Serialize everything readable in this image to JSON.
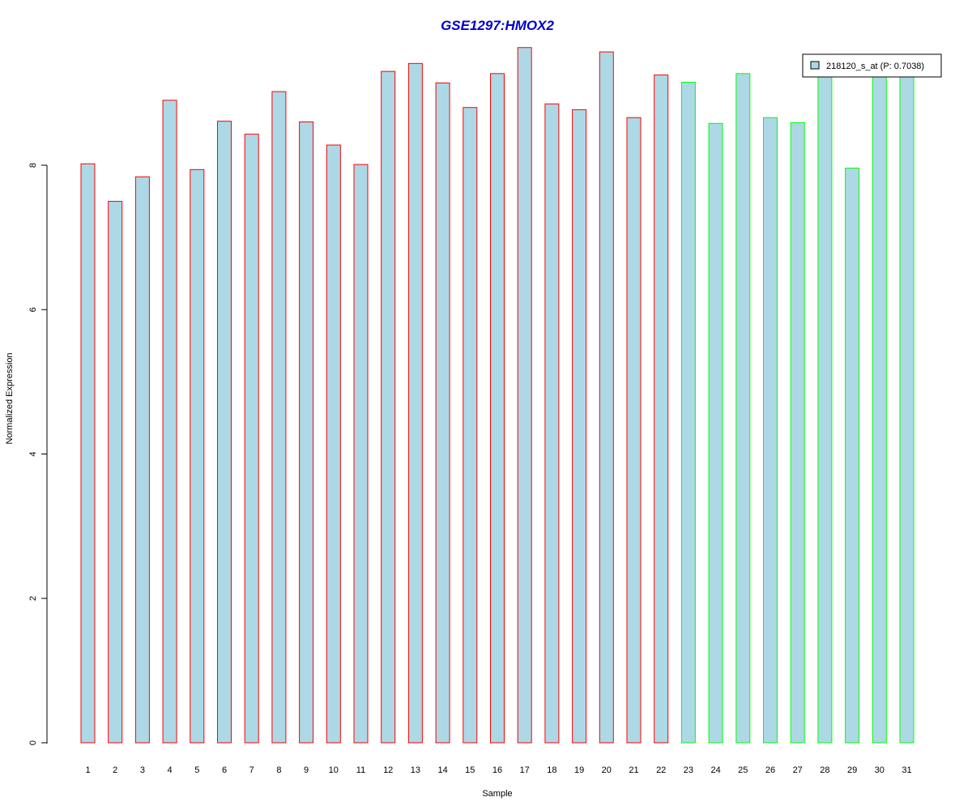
{
  "chart_data": {
    "type": "bar",
    "title": "GSE1297:HMOX2",
    "xlabel": "Sample",
    "ylabel": "Normalized Expression",
    "categories": [
      "1",
      "2",
      "3",
      "4",
      "5",
      "6",
      "7",
      "8",
      "9",
      "10",
      "11",
      "12",
      "13",
      "14",
      "15",
      "16",
      "17",
      "18",
      "19",
      "20",
      "21",
      "22",
      "23",
      "24",
      "25",
      "26",
      "27",
      "28",
      "29",
      "30",
      "31"
    ],
    "series": [
      {
        "name": "218120_s_at (P: 0.7038)",
        "values": [
          8.02,
          7.5,
          7.84,
          8.9,
          7.94,
          8.61,
          8.43,
          9.02,
          8.6,
          8.28,
          8.01,
          9.3,
          9.41,
          9.14,
          8.8,
          9.27,
          9.63,
          8.85,
          8.77,
          9.57,
          8.66,
          9.25,
          9.15,
          8.58,
          9.27,
          8.66,
          8.59,
          9.31,
          7.96,
          9.32,
          9.32
        ]
      }
    ],
    "groups": [
      {
        "samples": [
          1,
          22
        ],
        "color": "#ff0000"
      },
      {
        "samples": [
          23,
          31
        ],
        "color": "#00ff00"
      }
    ],
    "yticks": [
      "0",
      "2",
      "4",
      "6",
      "8"
    ],
    "ylim": [
      0,
      9.6
    ],
    "grid": false,
    "legend_position": "top-right",
    "colors": {
      "bar_fill": "#add8e6",
      "title": "#0000cd",
      "group1_border": "#ff0000",
      "group2_border": "#00ff00"
    }
  }
}
